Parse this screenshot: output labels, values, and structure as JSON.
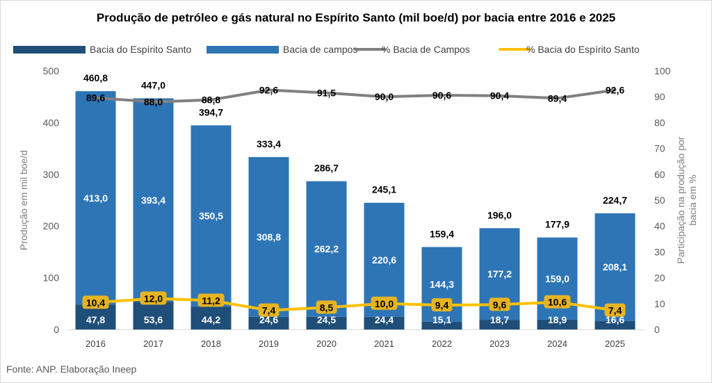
{
  "source": "Fonte: ANP. Elaboração Ineep",
  "colors": {
    "espirito_santo": "#1f4e79",
    "campos": "#2e75b6",
    "pct_campos": "#808080",
    "pct_es": "#ffc000",
    "pct_label_bg": "#e6b422"
  },
  "chart_data": {
    "type": "bar",
    "stacked": true,
    "title": "Produção de petróleo e gás natural no Espírito Santo (mil boe/d) por bacia entre 2016 e 2025",
    "ylabel": "Produção em mil boe/d",
    "y2label": "Participação na produção por bacia em %",
    "ylim": [
      0,
      500
    ],
    "y2lim": [
      0,
      100
    ],
    "yticks": [
      0,
      100,
      200,
      300,
      400,
      500
    ],
    "y2ticks": [
      0,
      10,
      20,
      30,
      40,
      50,
      60,
      70,
      80,
      90,
      100
    ],
    "grid": false,
    "legend_position": "top",
    "categories": [
      "2016",
      "2017",
      "2018",
      "2019",
      "2020",
      "2021",
      "2022",
      "2023",
      "2024",
      "2025"
    ],
    "series": [
      {
        "name": "Bacia do Espírito Santo",
        "type": "bar",
        "axis": "left",
        "values": [
          47.8,
          53.6,
          44.2,
          24.6,
          24.5,
          24.4,
          15.1,
          18.7,
          18.9,
          16.6
        ],
        "labels": [
          "47,8",
          "53,6",
          "44,2",
          "24,6",
          "24,5",
          "24,4",
          "15,1",
          "18,7",
          "18,9",
          "16,6"
        ]
      },
      {
        "name": "Bacia de campos",
        "type": "bar",
        "axis": "left",
        "values": [
          413.0,
          393.4,
          350.5,
          308.8,
          262.2,
          220.6,
          144.3,
          177.2,
          159.0,
          208.1
        ],
        "labels": [
          "413,0",
          "393,4",
          "350,5",
          "308,8",
          "262,2",
          "220,6",
          "144,3",
          "177,2",
          "159,0",
          "208,1"
        ]
      },
      {
        "name": "% Bacia de Campos",
        "type": "line",
        "axis": "right",
        "values": [
          89.6,
          88.0,
          88.8,
          92.6,
          91.5,
          90.0,
          90.6,
          90.4,
          89.4,
          92.6
        ],
        "labels": [
          "89,6",
          "88,0",
          "88,8",
          "92,6",
          "91,5",
          "90,0",
          "90,6",
          "90,4",
          "89,4",
          "92,6"
        ]
      },
      {
        "name": "% Bacia do Espírito Santo",
        "type": "line",
        "axis": "right",
        "values": [
          10.4,
          12.0,
          11.2,
          7.4,
          8.5,
          10.0,
          9.4,
          9.6,
          10.6,
          7.4
        ],
        "labels": [
          "10,4",
          "12,0",
          "11,2",
          "7,4",
          "8,5",
          "10,0",
          "9,4",
          "9,6",
          "10,6",
          "7,4"
        ]
      }
    ],
    "totals": [
      460.8,
      447.0,
      394.7,
      333.4,
      286.7,
      245.1,
      159.4,
      196.0,
      177.9,
      224.7
    ],
    "total_labels": [
      "460,8",
      "447,0",
      "394,7",
      "333,4",
      "286,7",
      "245,1",
      "159,4",
      "196,0",
      "177,9",
      "224,7"
    ]
  }
}
